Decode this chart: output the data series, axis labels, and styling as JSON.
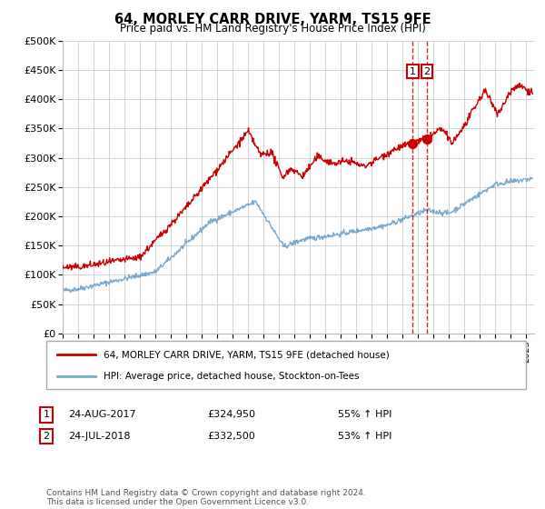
{
  "title": "64, MORLEY CARR DRIVE, YARM, TS15 9FE",
  "subtitle": "Price paid vs. HM Land Registry's House Price Index (HPI)",
  "legend_line1": "64, MORLEY CARR DRIVE, YARM, TS15 9FE (detached house)",
  "legend_line2": "HPI: Average price, detached house, Stockton-on-Tees",
  "transaction1_date": "24-AUG-2017",
  "transaction1_price": "£324,950",
  "transaction1_hpi": "55% ↑ HPI",
  "transaction1_year": 2017.64,
  "transaction2_date": "24-JUL-2018",
  "transaction2_price": "£332,500",
  "transaction2_hpi": "53% ↑ HPI",
  "transaction2_year": 2018.56,
  "footer": "Contains HM Land Registry data © Crown copyright and database right 2024.\nThis data is licensed under the Open Government Licence v3.0.",
  "red_line_color": "#cc0000",
  "blue_line_color": "#7aabcf",
  "dashed_line_color": "#cc0000",
  "background_color": "#ffffff",
  "grid_color": "#cccccc",
  "ylim_min": 0,
  "ylim_max": 500000,
  "xlim_min": 1995,
  "xlim_max": 2025.5
}
